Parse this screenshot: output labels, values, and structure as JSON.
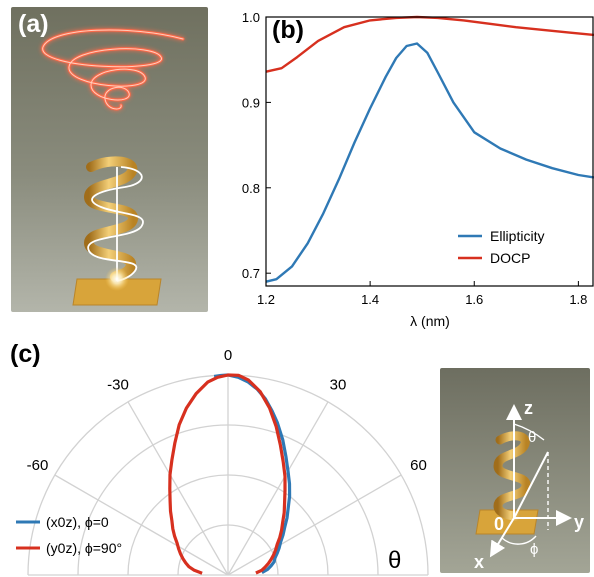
{
  "panels": {
    "a": {
      "label": "(a)"
    },
    "b": {
      "label": "(b)"
    },
    "c": {
      "label": "(c)"
    }
  },
  "inset_labels": {
    "z": "z",
    "y": "y",
    "x": "x",
    "origin": "0",
    "theta": "θ",
    "phi": "ϕ"
  },
  "colors": {
    "blue": "#2f79b5",
    "red": "#d7301f",
    "coil": "#e2b046",
    "plate": "#d8a43a",
    "spiral": "#ff6a4a",
    "grid": "#d2d2d2"
  },
  "chart_data": [
    {
      "type": "line",
      "panel": "(b)",
      "xlabel": "λ (nm)",
      "ylabel": "",
      "xlim": [
        1.2,
        1.83
      ],
      "ylim": [
        0.685,
        1.0
      ],
      "xticks": [
        1.2,
        1.4,
        1.6,
        1.8
      ],
      "xtick_labels": [
        "1.2",
        "1.4",
        "1.6",
        "1.8"
      ],
      "yticks": [
        0.7,
        0.8,
        0.9,
        1.0
      ],
      "ytick_labels": [
        "0.7",
        "0.8",
        "0.9",
        "1.0"
      ],
      "legend_position": "bottom-right",
      "grid": false,
      "series": [
        {
          "name": "Ellipticity",
          "color": "#2f79b5",
          "x": [
            1.2,
            1.22,
            1.25,
            1.28,
            1.31,
            1.34,
            1.37,
            1.4,
            1.43,
            1.45,
            1.47,
            1.49,
            1.51,
            1.53,
            1.56,
            1.6,
            1.65,
            1.7,
            1.75,
            1.8,
            1.83
          ],
          "y": [
            0.69,
            0.693,
            0.708,
            0.735,
            0.77,
            0.81,
            0.853,
            0.893,
            0.93,
            0.952,
            0.966,
            0.969,
            0.958,
            0.935,
            0.9,
            0.865,
            0.846,
            0.833,
            0.823,
            0.815,
            0.812
          ]
        },
        {
          "name": "DOCP",
          "color": "#d7301f",
          "x": [
            1.2,
            1.23,
            1.26,
            1.3,
            1.35,
            1.4,
            1.45,
            1.49,
            1.53,
            1.58,
            1.63,
            1.68,
            1.73,
            1.78,
            1.83
          ],
          "y": [
            0.936,
            0.94,
            0.953,
            0.972,
            0.988,
            0.996,
            0.999,
            1.0,
            0.999,
            0.996,
            0.992,
            0.988,
            0.985,
            0.982,
            0.979
          ]
        }
      ]
    },
    {
      "type": "polar",
      "panel": "(c)",
      "theta_range_deg": [
        -90,
        90
      ],
      "theta_ticks_deg": [
        -60,
        -30,
        0,
        30,
        60
      ],
      "theta_tick_labels": [
        "-60",
        "-30",
        "0",
        "30",
        "60"
      ],
      "angle_label": "θ",
      "r_max": 1.0,
      "r_grid": [
        0.25,
        0.5,
        0.75,
        1.0
      ],
      "legend_position": "bottom-left",
      "series": [
        {
          "name": "(x0z), ϕ=0",
          "color": "#2f79b5",
          "theta_deg": [
            -4,
            -2,
            0,
            3,
            6,
            9,
            12,
            15,
            18,
            22,
            26,
            30,
            34,
            38,
            42,
            46,
            50,
            54,
            58,
            62,
            66,
            70,
            74,
            78,
            82,
            86
          ],
          "r": [
            0.995,
            0.998,
            1.0,
            0.99,
            0.97,
            0.94,
            0.9,
            0.85,
            0.8,
            0.73,
            0.66,
            0.6,
            0.55,
            0.5,
            0.45,
            0.41,
            0.37,
            0.34,
            0.31,
            0.29,
            0.27,
            0.25,
            0.24,
            0.22,
            0.2,
            0.17
          ]
        },
        {
          "name": "(y0z), ϕ=90°",
          "color": "#d7301f",
          "theta_deg": [
            86,
            82,
            78,
            74,
            70,
            66,
            62,
            58,
            54,
            50,
            46,
            42,
            38,
            34,
            30,
            26,
            22,
            18,
            14,
            10,
            6,
            3,
            0,
            -3,
            -6,
            -10,
            -14,
            -18,
            -22,
            -26,
            -30,
            -34,
            -38,
            -42,
            -46,
            -50,
            -54,
            -58,
            -62,
            -66,
            -70,
            -74,
            -78,
            -82,
            -86
          ],
          "r": [
            0.14,
            0.17,
            0.19,
            0.21,
            0.23,
            0.25,
            0.27,
            0.29,
            0.32,
            0.35,
            0.38,
            0.42,
            0.46,
            0.51,
            0.57,
            0.63,
            0.7,
            0.78,
            0.86,
            0.93,
            0.98,
            1.0,
            1.0,
            0.99,
            0.97,
            0.92,
            0.86,
            0.79,
            0.71,
            0.64,
            0.58,
            0.52,
            0.47,
            0.43,
            0.39,
            0.36,
            0.33,
            0.3,
            0.28,
            0.26,
            0.24,
            0.22,
            0.2,
            0.17,
            0.13
          ]
        }
      ]
    }
  ]
}
